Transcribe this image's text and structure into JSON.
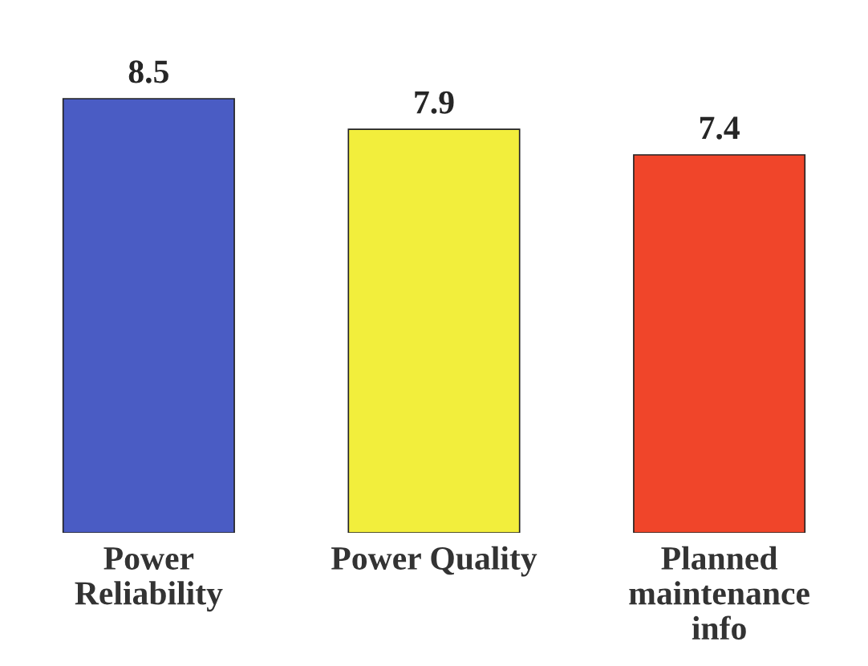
{
  "chart_data": {
    "type": "bar",
    "categories": [
      "Power\nReliability",
      "Power Quality",
      "Planned\nmaintenance\ninfo"
    ],
    "values": [
      8.5,
      7.9,
      7.4
    ],
    "colors": [
      "#4a5cc4",
      "#f2ee3c",
      "#f0452a"
    ],
    "data_labels": true
  }
}
